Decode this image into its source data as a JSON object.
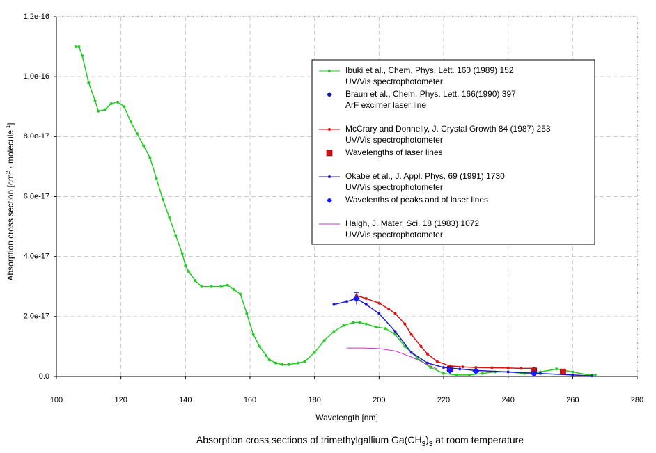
{
  "chart_data": {
    "type": "line",
    "title": [
      "Absorption cross sections of trimethylgallium Ga(CH",
      "3",
      ")",
      "3",
      " at room temperature"
    ],
    "xlabel": "Wavelength [nm]",
    "ylabel": [
      "Absorption cross section [cm",
      "2",
      " · molecule",
      "-1",
      "]"
    ],
    "xlim": [
      100,
      280
    ],
    "ylim": [
      0,
      1.2e-16
    ],
    "xticks": [
      100,
      120,
      140,
      160,
      180,
      200,
      220,
      240,
      260,
      280
    ],
    "yticks": [
      {
        "value": 0,
        "label": "0.0"
      },
      {
        "value": 2e-17,
        "label": "2.0e-17"
      },
      {
        "value": 4e-17,
        "label": "4.0e-17"
      },
      {
        "value": 6e-17,
        "label": "6.0e-17"
      },
      {
        "value": 8e-17,
        "label": "8.0e-17"
      },
      {
        "value": 1e-16,
        "label": "1.0e-16"
      },
      {
        "value": 1.2e-16,
        "label": "1.2e-16"
      }
    ],
    "grid": true,
    "legend": "upper right",
    "series": [
      {
        "name": "Ibuki et al.,  Chem. Phys. Lett. 160 (1989) 152",
        "note": "UV/Vis spectrophotometer",
        "color": "#22cc22",
        "marker": "dot",
        "line": true,
        "x": [
          106,
          107,
          108,
          110,
          112,
          113,
          115,
          117,
          119,
          121,
          123,
          125,
          127,
          129,
          131,
          133,
          135,
          137,
          139,
          140,
          141,
          143,
          145,
          148,
          151,
          153,
          155,
          157,
          159,
          161,
          163,
          165,
          166,
          168,
          170,
          172,
          175,
          177,
          180,
          183,
          186,
          189,
          192,
          194,
          196,
          199,
          202,
          205,
          208,
          212,
          216,
          220,
          224,
          228,
          232,
          236,
          240,
          245,
          250,
          255,
          260,
          265,
          267
        ],
        "values": [
          1.1e-16,
          1.1e-16,
          1.07e-16,
          9.8e-17,
          9.2e-17,
          8.85e-17,
          8.9e-17,
          9.1e-17,
          9.15e-17,
          9e-17,
          8.5e-17,
          8.1e-17,
          7.7e-17,
          7.3e-17,
          6.6e-17,
          5.9e-17,
          5.3e-17,
          4.7e-17,
          4.1e-17,
          3.7e-17,
          3.5e-17,
          3.2e-17,
          3e-17,
          3e-17,
          3e-17,
          3.05e-17,
          2.9e-17,
          2.75e-17,
          2.1e-17,
          1.4e-17,
          1e-17,
          7e-18,
          5.5e-18,
          4.5e-18,
          4e-18,
          4e-18,
          4.5e-18,
          5e-18,
          8e-18,
          1.2e-17,
          1.5e-17,
          1.7e-17,
          1.8e-17,
          1.8e-17,
          1.75e-17,
          1.65e-17,
          1.6e-17,
          1.4e-17,
          1e-17,
          6e-18,
          3e-18,
          1e-18,
          5e-19,
          5e-19,
          1e-18,
          1.5e-18,
          1.5e-18,
          1e-18,
          1.5e-18,
          2.5e-18,
          1.5e-18,
          5e-19,
          5e-19
        ]
      },
      {
        "name": "Braun et al., Chem. Phys. Lett. 166(1990) 397",
        "note": "ArF excimer laser line",
        "color": "#1a1aaa",
        "marker": "diamond",
        "line": false,
        "x": [
          193
        ],
        "values": [
          2.6e-17
        ],
        "errors": [
          2e-18
        ]
      },
      {
        "name": "McCrary and Donnelly, J. Crystal Growth 84 (1987) 253",
        "note": "UV/Vis spectrophotometer",
        "color": "#dd1111",
        "marker": "dot",
        "line": true,
        "x": [
          193,
          196,
          200,
          203,
          205,
          208,
          210,
          213,
          215,
          218,
          222,
          226,
          230,
          235,
          240,
          244,
          248
        ],
        "values": [
          2.7e-17,
          2.6e-17,
          2.45e-17,
          2.25e-17,
          2.1e-17,
          1.75e-17,
          1.4e-17,
          1e-17,
          7.5e-18,
          5e-18,
          3.5e-18,
          3.2e-18,
          3e-18,
          2.9e-18,
          2.8e-18,
          2.7e-18,
          2.7e-18
        ]
      },
      {
        "name": "Wavelengths of laser lines",
        "color": "#dd1111",
        "marker": "square",
        "line": false,
        "x": [
          222,
          248,
          257
        ],
        "values": [
          2.5e-18,
          1.9e-18,
          1.6e-18
        ]
      },
      {
        "name": "Okabe et al., J. Appl. Phys. 69 (1991) 1730",
        "note": "UV/Vis spectrophotometer",
        "color": "#1a1acc",
        "marker": "dot",
        "line": true,
        "x": [
          186,
          190,
          193,
          196,
          200,
          205,
          210,
          215,
          220,
          225,
          230,
          240,
          250,
          260,
          266
        ],
        "values": [
          2.4e-17,
          2.5e-17,
          2.6e-17,
          2.4e-17,
          2.1e-17,
          1.5e-17,
          8e-18,
          4.5e-18,
          3e-18,
          2.5e-18,
          2e-18,
          1.5e-18,
          1e-18,
          5e-19,
          2e-19
        ]
      },
      {
        "name": "Wavelenths of peaks and of laser lines",
        "color": "#1a1aff",
        "marker": "diamond",
        "line": false,
        "x": [
          193,
          222,
          230,
          248
        ],
        "values": [
          2.6e-17,
          2e-18,
          1.8e-18,
          1e-18
        ]
      },
      {
        "name": "Haigh, J. Mater. Sci. 18 (1983) 1072",
        "note": "UV/Vis spectrophotometer",
        "color": "#cc33cc",
        "marker": "none",
        "line": true,
        "x": [
          190,
          195,
          200,
          205,
          210,
          215,
          218
        ],
        "values": [
          9.5e-18,
          9.5e-18,
          9.3e-18,
          8.5e-18,
          6.5e-18,
          4e-18,
          2.5e-18
        ]
      }
    ]
  }
}
